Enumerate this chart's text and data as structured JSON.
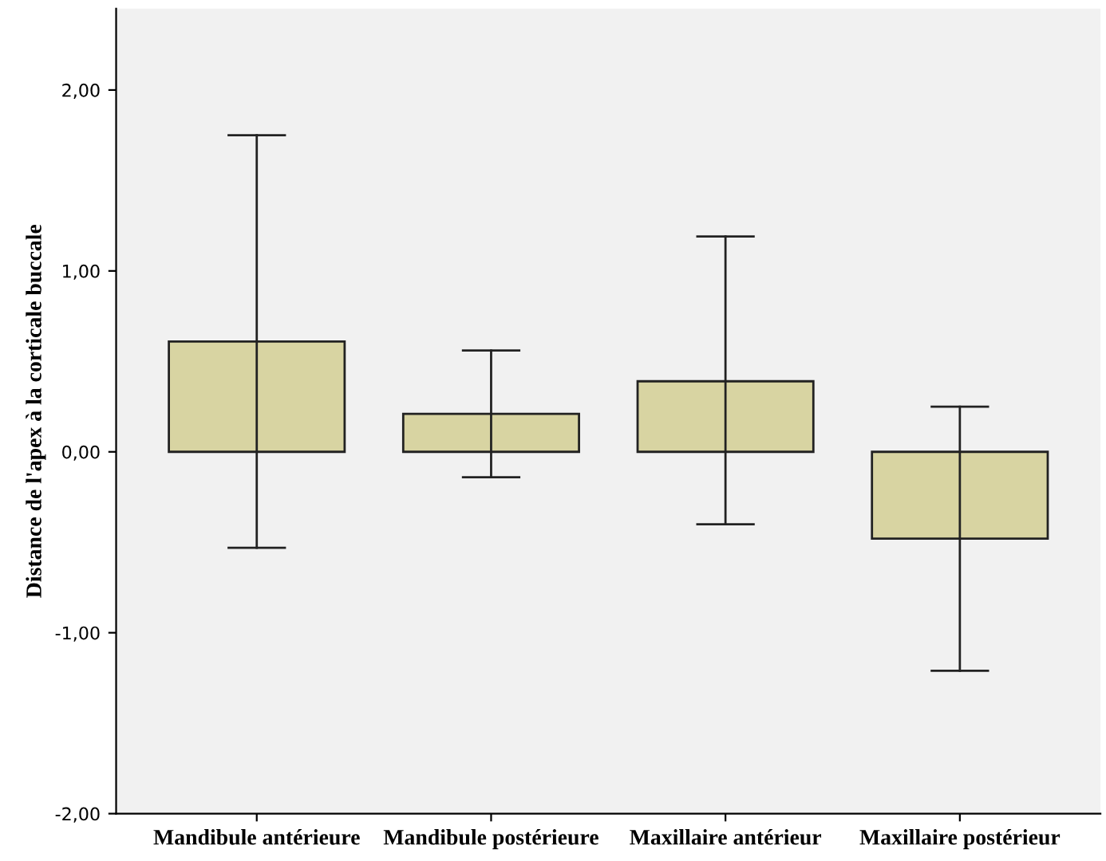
{
  "chart_data": {
    "type": "bar",
    "ylabel": "Distance de l'apex à la corticale buccale",
    "categories": [
      "Mandibule antérieure",
      "Mandibule postérieure",
      "Maxillaire antérieur",
      "Maxillaire postérieur"
    ],
    "values": [
      0.61,
      0.21,
      0.39,
      -0.48
    ],
    "errors": [
      [
        -0.53,
        1.75
      ],
      [
        -0.14,
        0.56
      ],
      [
        -0.4,
        1.19
      ],
      [
        -1.21,
        0.25
      ]
    ],
    "color": "#d8d4a2",
    "ylim": [
      -2,
      2.45
    ],
    "yticks": [
      {
        "value": -2,
        "label": "-2,00"
      },
      {
        "value": -1,
        "label": "-1,00"
      },
      {
        "value": 0,
        "label": "0,00"
      },
      {
        "value": 1,
        "label": "1,00"
      },
      {
        "value": 2,
        "label": "2,00"
      }
    ],
    "grid": false,
    "legend": false
  }
}
